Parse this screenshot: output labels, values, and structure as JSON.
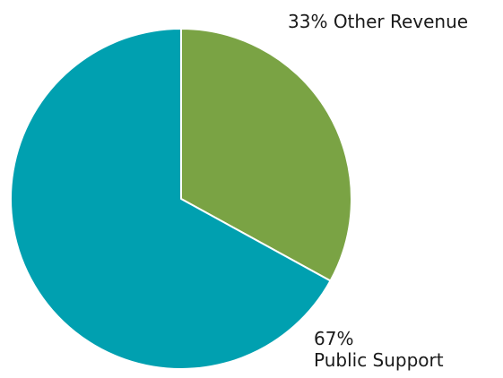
{
  "chart_data": {
    "type": "pie",
    "slices": [
      {
        "label": "Other Revenue",
        "value": 33,
        "percent_text": "33%",
        "color": "#7aa344"
      },
      {
        "label": "Public Support",
        "value": 67,
        "percent_text": "67%",
        "color": "#00a0b0"
      }
    ],
    "start": "12 o'clock",
    "direction": "clockwise",
    "separator_color": "#ffffff"
  }
}
